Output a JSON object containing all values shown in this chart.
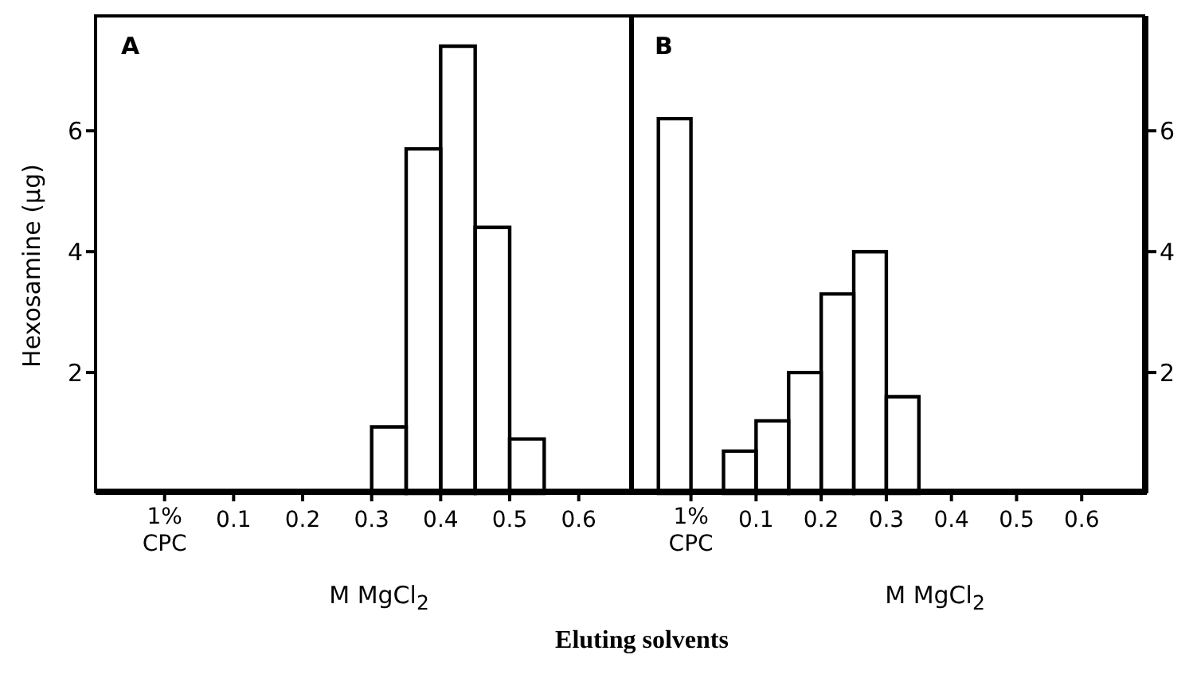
{
  "chart_data": [
    {
      "type": "histogram",
      "title": "A",
      "xlabel": "M MgCl$_{2}$",
      "ylabel": "Hexosamine (μg)",
      "bins": [
        0.3,
        0.35,
        0.4,
        0.45,
        0.5,
        0.55
      ],
      "values": [
        1.1,
        5.7,
        7.4,
        4.4,
        0.9
      ],
      "color": "#000000",
      "xlim": [
        -0.1,
        0.68
      ],
      "xticks": [
        {
          "value": 0,
          "label": null
        },
        0.1,
        0.2,
        0.3,
        0.4,
        0.5,
        0.6
      ],
      "ylim": [
        0,
        7.9
      ],
      "yticks": [
        2,
        4,
        6
      ],
      "grid": false,
      "annotations": [
        "1% CPC",
        "Eluting solvents"
      ]
    },
    {
      "type": "histogram",
      "title": "B",
      "xlabel": "M MgCl$_{2}$",
      "bins": [
        -0.05,
        0,
        0.05,
        0.1,
        0.15,
        0.2,
        0.25,
        0.3,
        0.35
      ],
      "values": [
        6.2,
        0,
        0.7,
        1.2,
        2.0,
        3.3,
        4.0,
        1.6
      ],
      "color": "#000000",
      "xlim": [
        -0.09,
        0.7
      ],
      "xticks": [
        {
          "value": 0,
          "label": null
        },
        0.1,
        0.2,
        0.3,
        0.4,
        0.5,
        0.6
      ],
      "ylim": [
        0,
        7.9
      ],
      "yticks": [
        2,
        4,
        6
      ],
      "grid": false,
      "annotations": [
        "1% CPC"
      ]
    }
  ]
}
